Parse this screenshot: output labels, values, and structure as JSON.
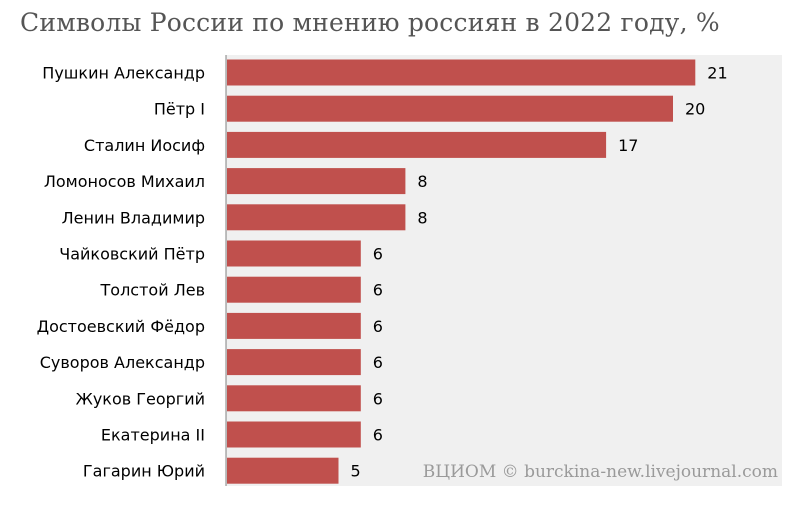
{
  "title": "Символы России по мнению россиян в 2022 году, %",
  "credit": "ВЦИОМ © burckina-new.livejournal.com",
  "colors": {
    "bar": "#c0504d",
    "plot_background": "#f0f0f0",
    "title": "#555555",
    "credit": "#9a9a9a"
  },
  "chart_data": {
    "type": "bar",
    "orientation": "horizontal",
    "title": "Символы России по мнению россиян в 2022 году, %",
    "categories": [
      "Пушкин Александр",
      "Пётр I",
      "Сталин Иосиф",
      "Ломоносов Михаил",
      "Ленин Владимир",
      "Чайковский Пётр",
      "Толстой Лев",
      "Достоевский Фёдор",
      "Суворов Александр",
      "Жуков Георгий",
      "Екатерина II",
      "Гагарин Юрий"
    ],
    "values": [
      21,
      20,
      17,
      8,
      8,
      6,
      6,
      6,
      6,
      6,
      6,
      5
    ],
    "xlim": [
      0,
      25
    ],
    "grid": false,
    "data_labels": true,
    "legend": "none"
  }
}
